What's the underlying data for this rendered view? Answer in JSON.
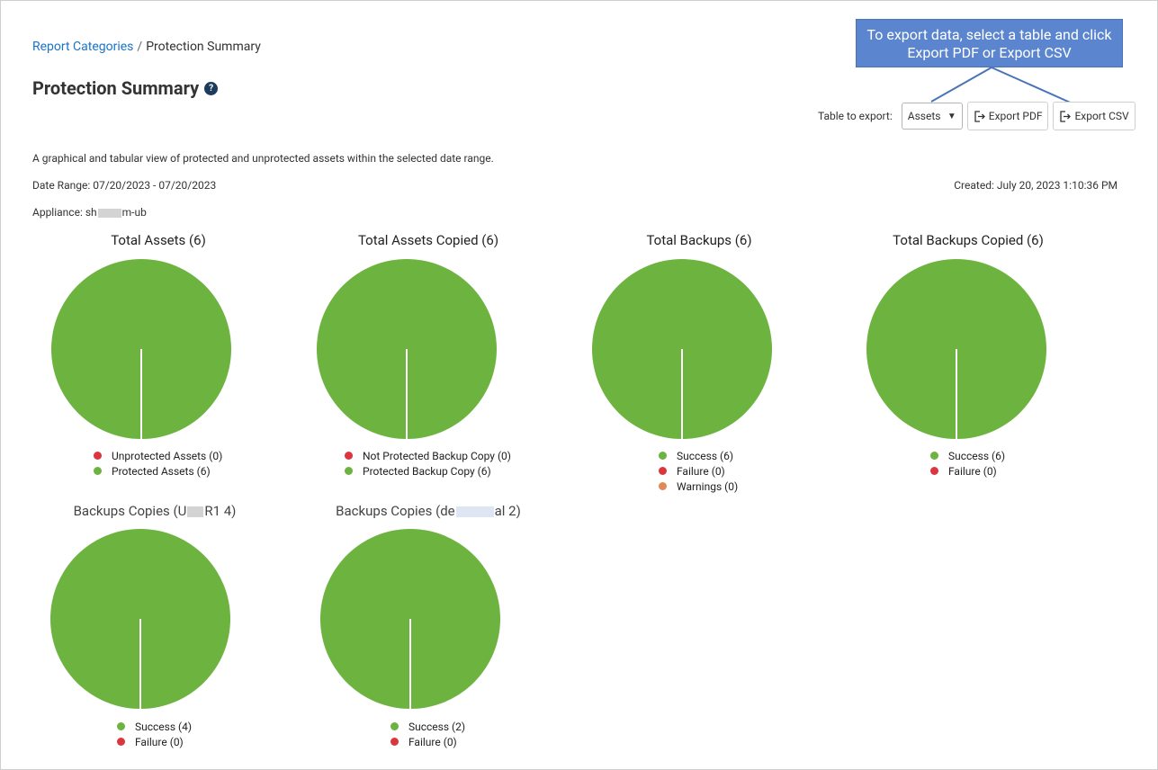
{
  "breadcrumb": {
    "parent": "Report Categories",
    "separator": "/",
    "current": "Protection Summary"
  },
  "page_title": "Protection Summary",
  "help_icon": "?",
  "callout": {
    "text": "To export data, select a table and click Export PDF or Export CSV"
  },
  "export": {
    "label": "Table to export:",
    "selected_table": "Assets",
    "pdf_label": "Export PDF",
    "csv_label": "Export CSV"
  },
  "description": "A graphical and tabular view of protected and unprotected assets within the selected date range.",
  "date_range": "Date Range: 07/20/2023 - 07/20/2023",
  "created": "Created: July 20, 2023 1:10:36 PM",
  "appliance": {
    "prefix": "Appliance: sh",
    "suffix": "m-ub"
  },
  "colors": {
    "success": "#6db33f",
    "failure": "#d9363e",
    "warning": "#e08a5a",
    "link": "#1a73c8",
    "callout": "#5b86cf"
  },
  "charts": [
    {
      "title": "Total Assets (6)",
      "legend": [
        {
          "label": "Unprotected Assets (0)",
          "color": "#d9363e"
        },
        {
          "label": "Protected Assets (6)",
          "color": "#6db33f"
        }
      ]
    },
    {
      "title": "Total Assets Copied (6)",
      "legend": [
        {
          "label": "Not Protected Backup Copy (0)",
          "color": "#d9363e"
        },
        {
          "label": "Protected Backup Copy (6)",
          "color": "#6db33f"
        }
      ]
    },
    {
      "title": "Total Backups  (6)",
      "legend": [
        {
          "label": "Success (6)",
          "color": "#6db33f"
        },
        {
          "label": "Failure (0)",
          "color": "#d9363e"
        },
        {
          "label": "Warnings (0)",
          "color": "#e08a5a"
        }
      ]
    },
    {
      "title": "Total Backups Copied (6)",
      "legend": [
        {
          "label": "Success (6)",
          "color": "#6db33f"
        },
        {
          "label": "Failure (0)",
          "color": "#d9363e"
        }
      ]
    },
    {
      "title_prefix": "Backups Copies (U",
      "title_suffix": "R1 4)",
      "legend": [
        {
          "label": "Success (4)",
          "color": "#6db33f"
        },
        {
          "label": "Failure (0)",
          "color": "#d9363e"
        }
      ]
    },
    {
      "title_prefix": "Backups Copies (de",
      "title_suffix": "al 2)",
      "legend": [
        {
          "label": "Success (2)",
          "color": "#6db33f"
        },
        {
          "label": "Failure (0)",
          "color": "#d9363e"
        }
      ]
    }
  ],
  "chart_data": [
    {
      "type": "pie",
      "title": "Total Assets (6)",
      "categories": [
        "Unprotected Assets",
        "Protected Assets"
      ],
      "values": [
        0,
        6
      ]
    },
    {
      "type": "pie",
      "title": "Total Assets Copied (6)",
      "categories": [
        "Not Protected Backup Copy",
        "Protected Backup Copy"
      ],
      "values": [
        0,
        6
      ]
    },
    {
      "type": "pie",
      "title": "Total Backups  (6)",
      "categories": [
        "Success",
        "Failure",
        "Warnings"
      ],
      "values": [
        6,
        0,
        0
      ]
    },
    {
      "type": "pie",
      "title": "Total Backups Copied (6)",
      "categories": [
        "Success",
        "Failure"
      ],
      "values": [
        6,
        0
      ]
    },
    {
      "type": "pie",
      "title": "Backups Copies (U",
      "categories": [
        "Success",
        "Failure"
      ],
      "values": [
        4,
        0
      ]
    },
    {
      "type": "pie",
      "title": "Backups Copies (de",
      "categories": [
        "Success",
        "Failure"
      ],
      "values": [
        2,
        0
      ]
    }
  ]
}
